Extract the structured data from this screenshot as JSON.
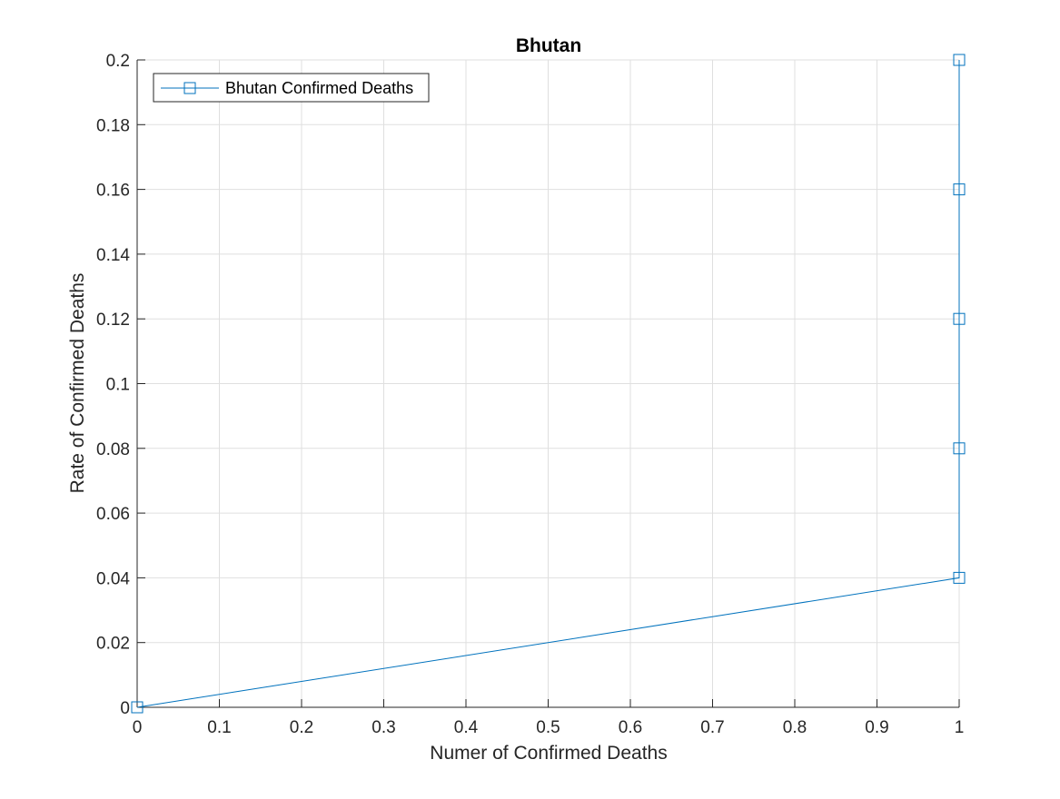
{
  "chart_data": {
    "type": "line",
    "title": "Bhutan",
    "xlabel": "Numer of Confirmed Deaths",
    "ylabel": "Rate of Confirmed Deaths",
    "xlim": [
      0,
      1
    ],
    "ylim": [
      0,
      0.2
    ],
    "x_ticks": [
      "0",
      "0.1",
      "0.2",
      "0.3",
      "0.4",
      "0.5",
      "0.6",
      "0.7",
      "0.8",
      "0.9",
      "1"
    ],
    "y_ticks": [
      "0",
      "0.02",
      "0.04",
      "0.06",
      "0.08",
      "0.1",
      "0.12",
      "0.14",
      "0.16",
      "0.18",
      "0.2"
    ],
    "grid": true,
    "legend_location": "top-left",
    "series": [
      {
        "name": "Bhutan Confirmed Deaths",
        "marker": "square",
        "color": "#0072BD",
        "x": [
          0,
          1,
          1,
          1,
          1,
          1
        ],
        "y": [
          0,
          0.04,
          0.08,
          0.12,
          0.16,
          0.2
        ]
      }
    ]
  }
}
